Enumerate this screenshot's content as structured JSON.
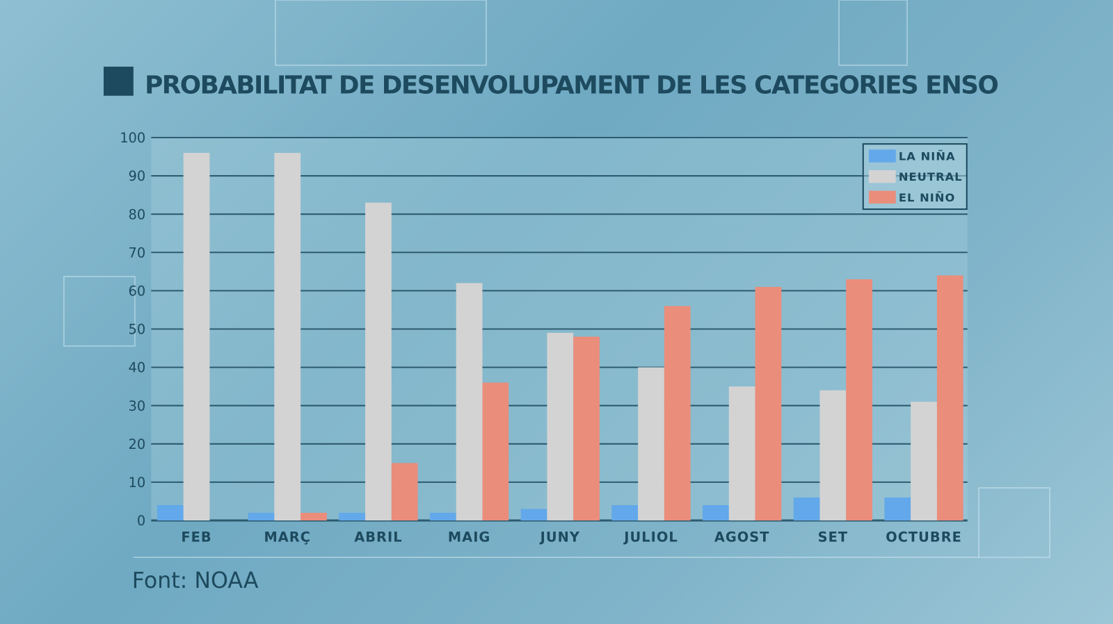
{
  "chart_data": {
    "type": "bar",
    "title": "PROBABILITAT DE DESENVOLUPAMENT DE LES CATEGORIES ENSO",
    "categories": [
      "FEB",
      "MARÇ",
      "ABRIL",
      "MAIG",
      "JUNY",
      "JULIOL",
      "AGOST",
      "SET",
      "OCTUBRE"
    ],
    "series": [
      {
        "name": "LA NIÑA",
        "color": "#62a8ea",
        "values": [
          4,
          2,
          2,
          2,
          3,
          4,
          4,
          6,
          6
        ]
      },
      {
        "name": "NEUTRAL",
        "color": "#d3d3d3",
        "values": [
          96,
          96,
          83,
          62,
          49,
          40,
          35,
          34,
          31
        ]
      },
      {
        "name": "EL NIÑO",
        "color": "#ea8d7b",
        "values": [
          0,
          2,
          15,
          36,
          48,
          56,
          61,
          63,
          64
        ]
      }
    ],
    "yticks": [
      "0",
      "10",
      "20",
      "30",
      "40",
      "50",
      "60",
      "70",
      "80",
      "90",
      "100"
    ],
    "ylim": [
      0,
      100
    ],
    "grid": true,
    "legend": "top-right",
    "source": "Font: NOAA"
  }
}
